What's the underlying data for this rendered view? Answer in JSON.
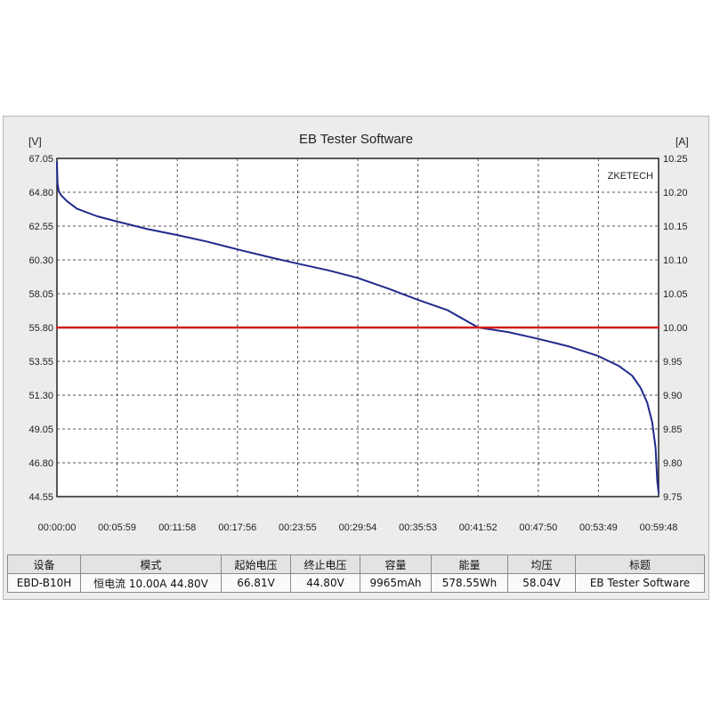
{
  "chart_data": {
    "type": "line",
    "title": "EB Tester Software",
    "watermark": "ZKETECH",
    "y_left_unit": "[V]",
    "y_right_unit": "[A]",
    "y_left_ticks": [
      "67.05",
      "64.80",
      "62.55",
      "60.30",
      "58.05",
      "55.80",
      "53.55",
      "51.30",
      "49.05",
      "46.80",
      "44.55"
    ],
    "y_right_ticks": [
      "10.25",
      "10.20",
      "10.15",
      "10.10",
      "10.05",
      "10.00",
      "9.95",
      "9.90",
      "9.85",
      "9.80",
      "9.75"
    ],
    "x_ticks": [
      "00:00:00",
      "00:05:59",
      "00:11:58",
      "00:17:56",
      "00:23:55",
      "00:29:54",
      "00:35:53",
      "00:41:52",
      "00:47:50",
      "00:53:49",
      "00:59:48"
    ],
    "y_left_range": [
      44.55,
      67.05
    ],
    "y_right_range": [
      9.75,
      10.25
    ],
    "x_range_seconds": [
      0,
      3588
    ],
    "grid": true,
    "series": [
      {
        "axis": "left",
        "color": "#1f2a8c",
        "points": [
          [
            0,
            66.81
          ],
          [
            3,
            65.4
          ],
          [
            10,
            64.9
          ],
          [
            25,
            64.6
          ],
          [
            60,
            64.2
          ],
          [
            120,
            63.7
          ],
          [
            240,
            63.2
          ],
          [
            359,
            62.85
          ],
          [
            540,
            62.35
          ],
          [
            718,
            61.95
          ],
          [
            900,
            61.5
          ],
          [
            1076,
            61.0
          ],
          [
            1260,
            60.5
          ],
          [
            1435,
            60.05
          ],
          [
            1620,
            59.6
          ],
          [
            1794,
            59.1
          ],
          [
            1973,
            58.4
          ],
          [
            2152,
            57.65
          ],
          [
            2330,
            56.95
          ],
          [
            2512,
            55.8
          ],
          [
            2691,
            55.5
          ],
          [
            2870,
            55.05
          ],
          [
            3050,
            54.55
          ],
          [
            3229,
            53.9
          ],
          [
            3350,
            53.25
          ],
          [
            3430,
            52.6
          ],
          [
            3480,
            51.8
          ],
          [
            3520,
            50.8
          ],
          [
            3550,
            49.5
          ],
          [
            3570,
            47.8
          ],
          [
            3580,
            45.6
          ],
          [
            3588,
            44.8
          ]
        ]
      },
      {
        "axis": "right",
        "color": "#d41c1c",
        "points": [
          [
            0,
            10.0
          ],
          [
            3588,
            10.0
          ]
        ]
      }
    ]
  },
  "colors": {
    "voltage_line": "#1f2a8c",
    "current_line": "#d41c1c",
    "grid": "#555555"
  },
  "table": {
    "headers": [
      "设备",
      "模式",
      "起始电压",
      "终止电压",
      "容量",
      "能量",
      "均压",
      "标题"
    ],
    "row": [
      "EBD-B10H",
      "恒电流  10.00A  44.80V",
      "66.81V",
      "44.80V",
      "9965mAh",
      "578.55Wh",
      "58.04V",
      "EB Tester Software"
    ]
  }
}
